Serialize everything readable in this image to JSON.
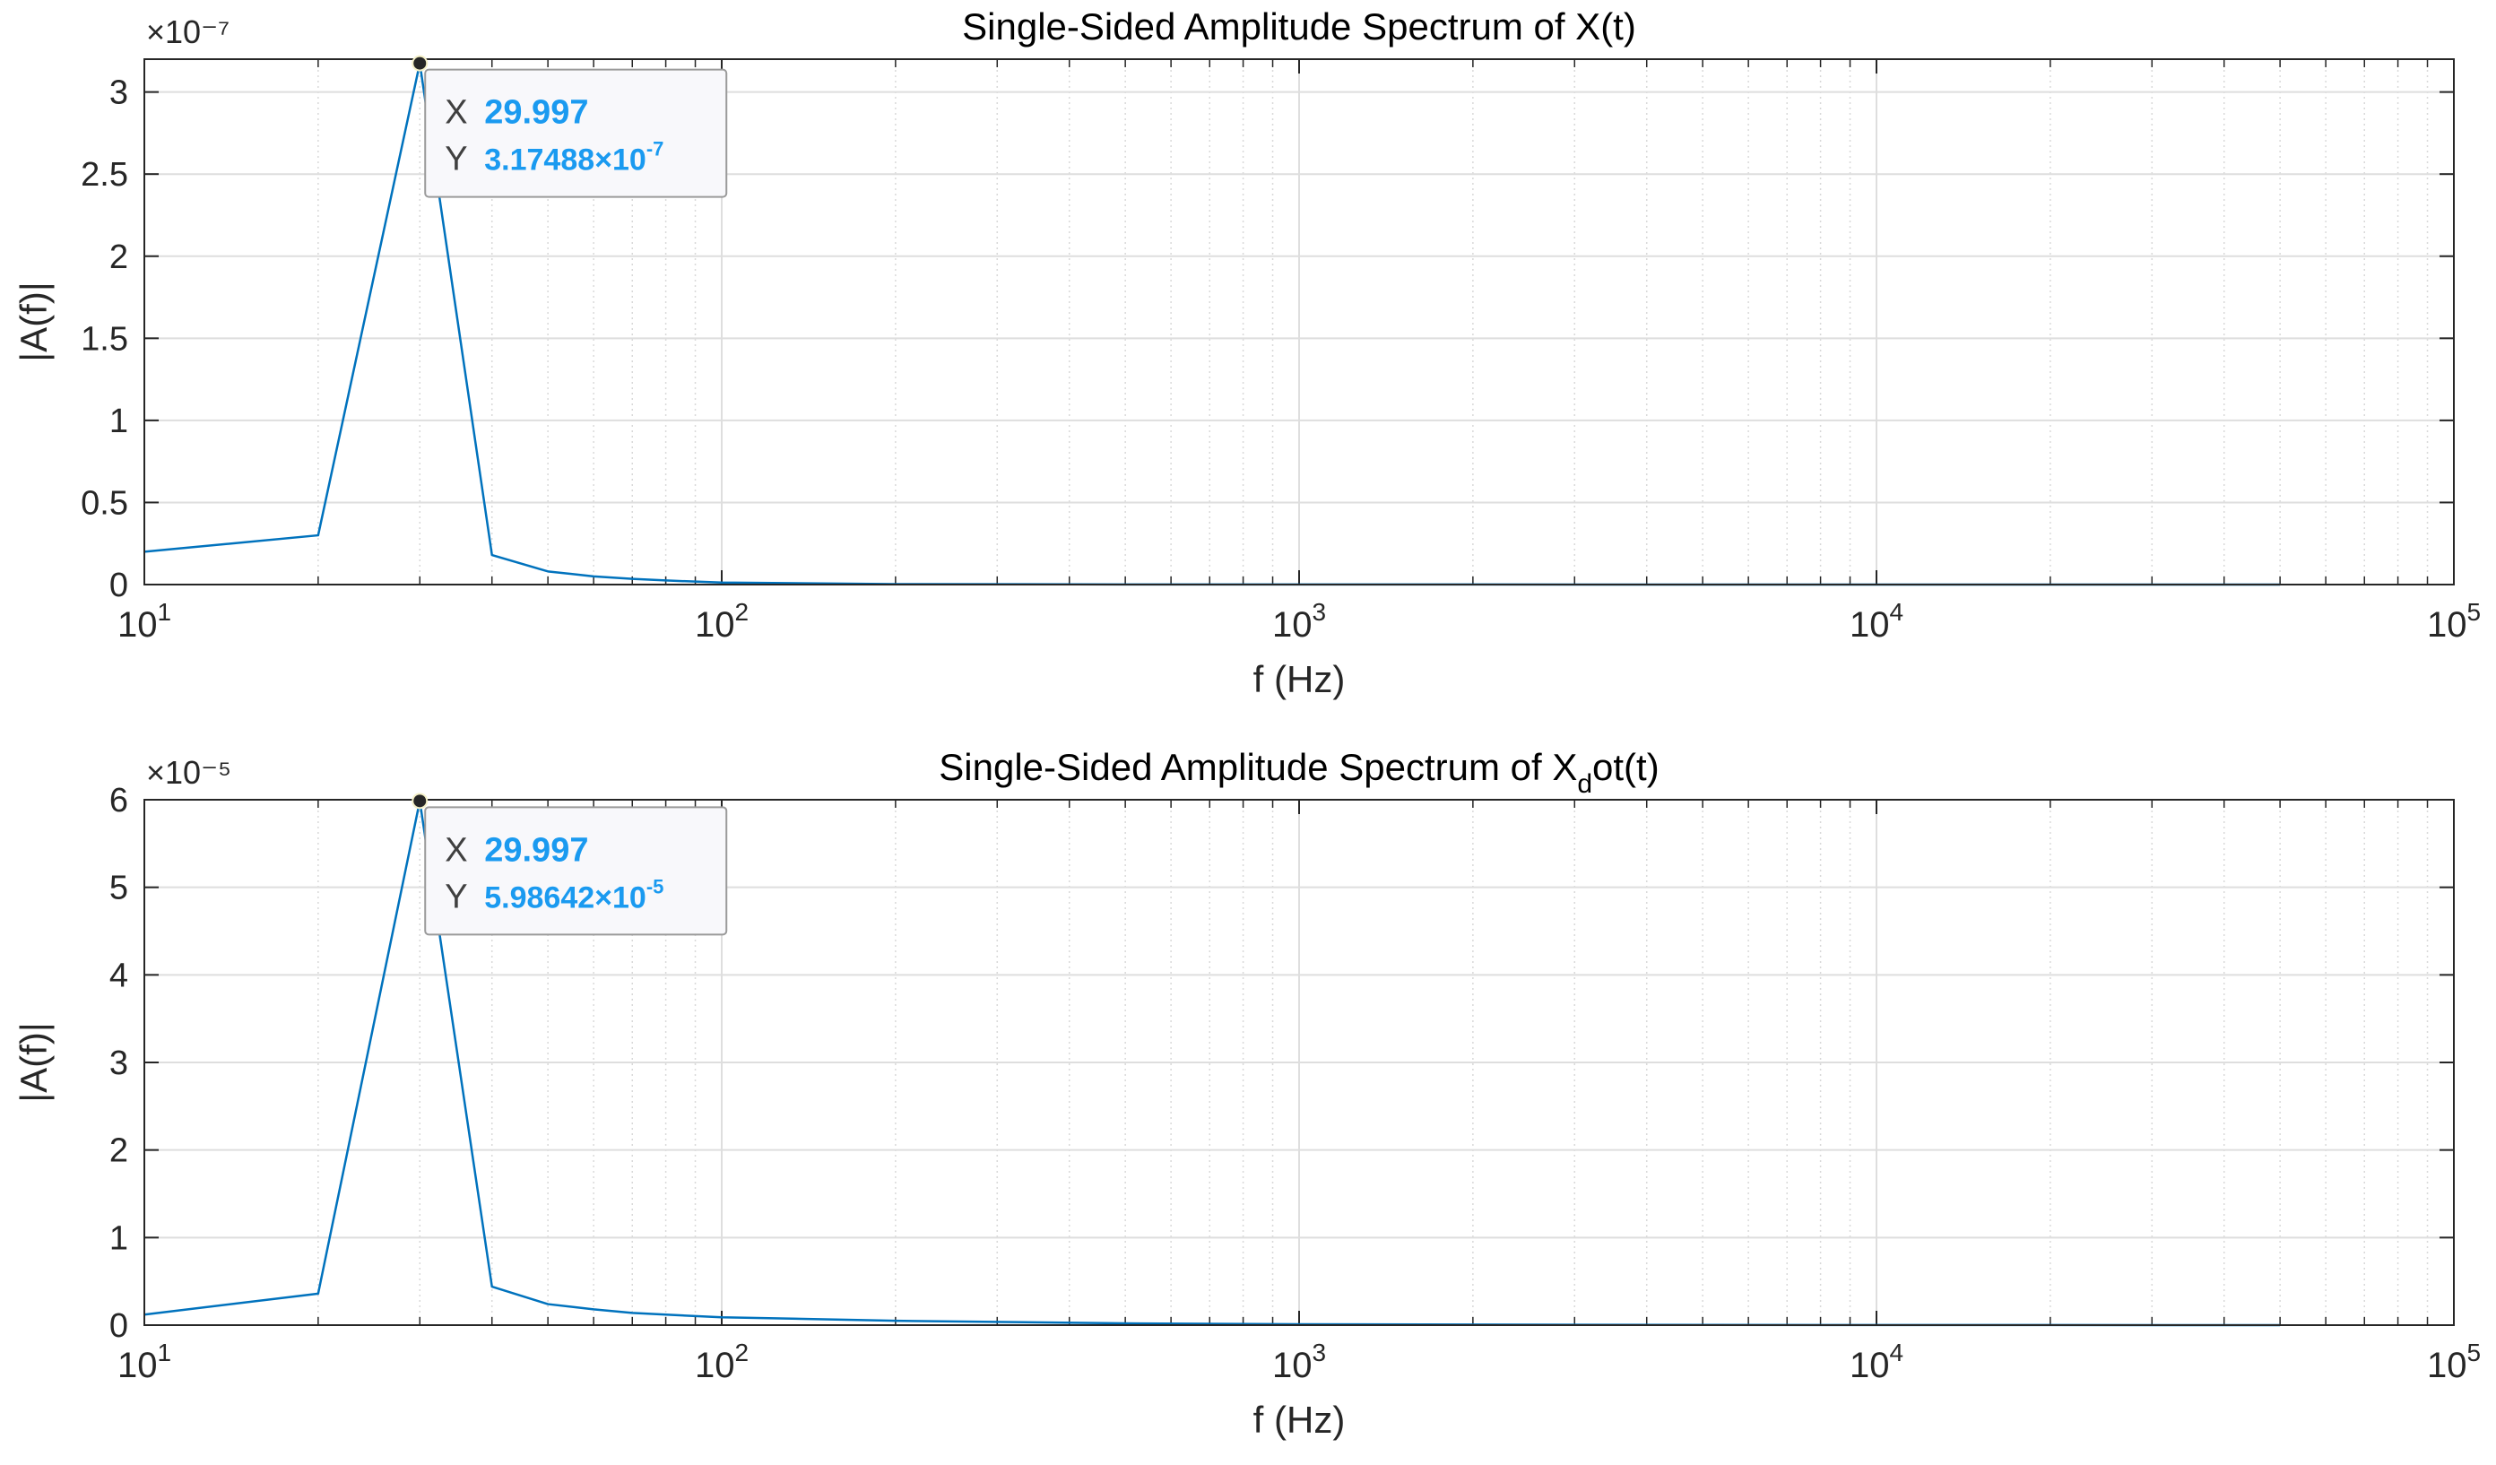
{
  "chart_data": [
    {
      "type": "line",
      "title": "Single-Sided Amplitude Spectrum of X(t)",
      "xlabel": "f (Hz)",
      "ylabel": "|A(f)|",
      "xscale": "log",
      "xlim": [
        10,
        100000
      ],
      "ylim": [
        0,
        3.2e-07
      ],
      "y_exponent_label": "×10⁻⁷",
      "y_scale": 1e-07,
      "yticks": [
        0,
        0.5,
        1,
        1.5,
        2,
        2.5,
        3
      ],
      "ytick_labels": [
        "0",
        "0.5",
        "1",
        "1.5",
        "2",
        "2.5",
        "3"
      ],
      "xticks": [
        10,
        100,
        1000,
        10000,
        100000
      ],
      "xtick_labels": [
        {
          "base": "10",
          "exp": "1"
        },
        {
          "base": "10",
          "exp": "2"
        },
        {
          "base": "10",
          "exp": "3"
        },
        {
          "base": "10",
          "exp": "4"
        },
        {
          "base": "10",
          "exp": "5"
        }
      ],
      "grid": true,
      "line_color": "#0072BD",
      "x": [
        10,
        20,
        29.997,
        40,
        50,
        60,
        70,
        80,
        100,
        200,
        500,
        1000,
        5000,
        10000,
        50000
      ],
      "y": [
        2e-08,
        3e-08,
        3.17488e-07,
        1.8e-08,
        8e-09,
        5e-09,
        3.5e-09,
        2.5e-09,
        1.2e-09,
        3e-10,
        1e-10,
        5e-11,
        2e-11,
        1e-11,
        5e-12
      ],
      "datatip": {
        "x": 29.997,
        "y": 3.17488e-07,
        "x_text": "29.997",
        "y_mantissa": "3.17488",
        "y_exp": "-7",
        "x_label": "X",
        "y_label": "Y"
      }
    },
    {
      "type": "line",
      "title": "Single-Sided Amplitude Spectrum of X_dot(t)",
      "title_parts": {
        "before": "Single-Sided Amplitude Spectrum of X",
        "sub": "d",
        "after": "ot(t)"
      },
      "xlabel": "f (Hz)",
      "ylabel": "|A(f)|",
      "xscale": "log",
      "xlim": [
        10,
        100000
      ],
      "ylim": [
        0,
        6e-05
      ],
      "y_exponent_label": "×10⁻⁵",
      "y_scale": 1e-05,
      "yticks": [
        0,
        1,
        2,
        3,
        4,
        5,
        6
      ],
      "ytick_labels": [
        "0",
        "1",
        "2",
        "3",
        "4",
        "5",
        "6"
      ],
      "xticks": [
        10,
        100,
        1000,
        10000,
        100000
      ],
      "xtick_labels": [
        {
          "base": "10",
          "exp": "1"
        },
        {
          "base": "10",
          "exp": "2"
        },
        {
          "base": "10",
          "exp": "3"
        },
        {
          "base": "10",
          "exp": "4"
        },
        {
          "base": "10",
          "exp": "5"
        }
      ],
      "grid": true,
      "line_color": "#0072BD",
      "x": [
        10,
        20,
        29.997,
        40,
        50,
        60,
        70,
        80,
        100,
        200,
        500,
        1000,
        5000,
        10000,
        50000
      ],
      "y": [
        1.2e-06,
        3.6e-06,
        5.98642e-05,
        4.4e-06,
        2.4e-06,
        1.8e-06,
        1.4e-06,
        1.2e-06,
        9e-07,
        5e-07,
        2e-07,
        1e-07,
        2e-08,
        1e-08,
        2e-09
      ],
      "datatip": {
        "x": 29.997,
        "y": 5.98642e-05,
        "x_text": "29.997",
        "y_mantissa": "5.98642",
        "y_exp": "-5",
        "x_label": "X",
        "y_label": "Y"
      }
    }
  ]
}
